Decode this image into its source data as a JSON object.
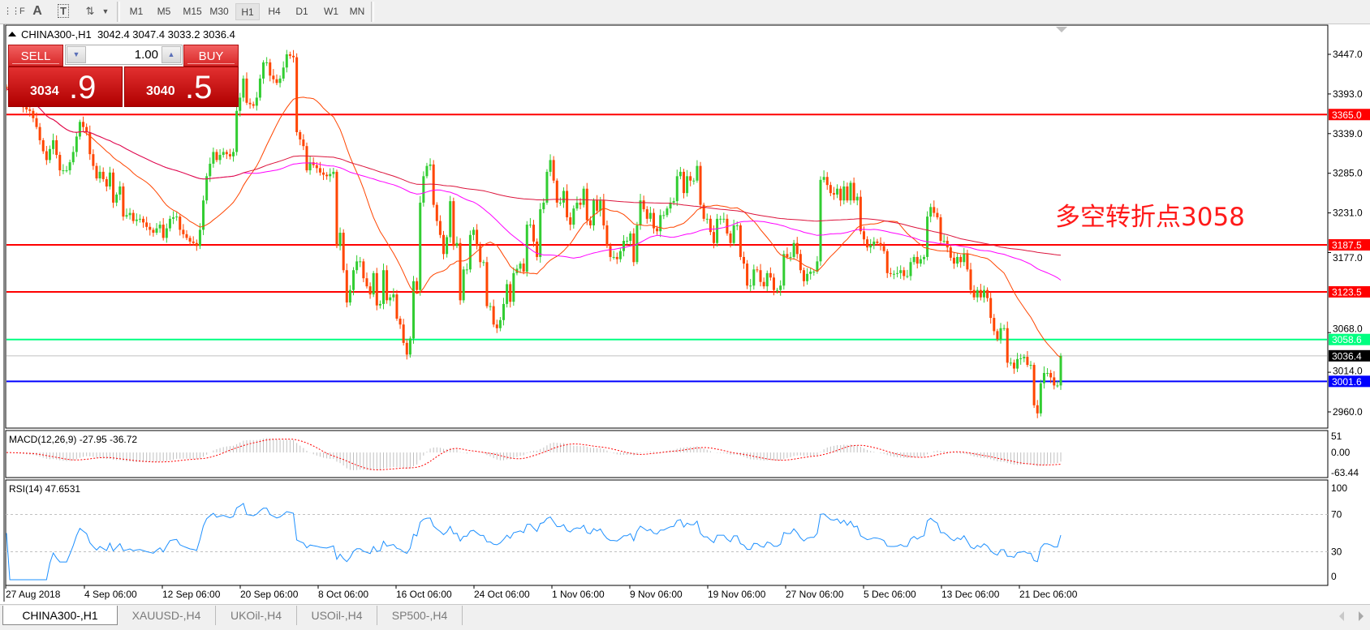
{
  "toolbar": {
    "icons": [
      "grid-f-icon",
      "text-icon",
      "text-label-icon",
      "arrows-icon"
    ],
    "timeframes": [
      "M1",
      "M5",
      "M15",
      "M30",
      "H1",
      "H4",
      "D1",
      "W1",
      "MN"
    ],
    "active_timeframe": "H1"
  },
  "chart_title": {
    "symbol": "CHINA300-,H1",
    "ohlc": "3042.4 3047.4 3033.2 3036.4"
  },
  "trade_panel": {
    "sell_label": "SELL",
    "buy_label": "BUY",
    "volume": "1.00",
    "sell_price_main": "3034",
    "sell_price_big": ".9",
    "buy_price_main": "3040",
    "buy_price_big": ".5"
  },
  "annotation": "多空转折点3058",
  "colors": {
    "bull": "#32cd32",
    "bear": "#ff4500",
    "ma_fast": "#ff4500",
    "ma_mid": "#ff00ff",
    "ma_slow": "#dc143c",
    "macd_hist": "#c0c0c0",
    "macd_signal": "#ff0000",
    "rsi": "#1e90ff"
  },
  "chart": {
    "price_ticks": [
      "3447.0",
      "3393.0",
      "3339.0",
      "3285.0",
      "3231.0",
      "3177.0",
      "3068.0",
      "3014.0",
      "2960.0"
    ],
    "levels": [
      {
        "price": 3365.0,
        "label": "3365.0",
        "color": "#ff0000",
        "text_color": "#ffffff"
      },
      {
        "price": 3187.5,
        "label": "3187.5",
        "color": "#ff0000",
        "text_color": "#ffffff"
      },
      {
        "price": 3123.5,
        "label": "3123.5",
        "color": "#ff0000",
        "text_color": "#ffffff"
      },
      {
        "price": 3058.6,
        "label": "3058.6",
        "color": "#00ff80",
        "text_color": "#ffffff"
      },
      {
        "price": 3036.4,
        "label": "3036.4",
        "color": "#c0c0c0",
        "text_color": "#ffffff",
        "tag_color": "#000000"
      },
      {
        "price": 3001.6,
        "label": "3001.6",
        "color": "#0000ff",
        "text_color": "#ffffff"
      }
    ],
    "time_labels": [
      "27 Aug 2018",
      "4 Sep 06:00",
      "12 Sep 06:00",
      "20 Sep 06:00",
      "8 Oct 06:00",
      "16 Oct 06:00",
      "24 Oct 06:00",
      "1 Nov 06:00",
      "9 Nov 06:00",
      "19 Nov 06:00",
      "27 Nov 06:00",
      "5 Dec 06:00",
      "13 Dec 06:00",
      "21 Dec 06:00"
    ],
    "closes": [
      3400,
      3395,
      3390,
      3385,
      3380,
      3375,
      3372,
      3370,
      3360,
      3348,
      3330,
      3315,
      3303,
      3318,
      3330,
      3310,
      3289,
      3289,
      3289,
      3300,
      3314,
      3335,
      3355,
      3348,
      3341,
      3311,
      3295,
      3278,
      3287,
      3277,
      3267,
      3286,
      3245,
      3256,
      3267,
      3226,
      3228,
      3231,
      3220,
      3222,
      3223,
      3218,
      3212,
      3208,
      3204,
      3210,
      3215,
      3197,
      3210,
      3223,
      3225,
      3226,
      3208,
      3202,
      3197,
      3192,
      3190,
      3186,
      3208,
      3248,
      3281,
      3298,
      3314,
      3303,
      3310,
      3314,
      3311,
      3308,
      3314,
      3370,
      3388,
      3414,
      3381,
      3379,
      3377,
      3388,
      3414,
      3436,
      3436,
      3418,
      3413,
      3408,
      3414,
      3429,
      3447,
      3445,
      3443,
      3341,
      3331,
      3322,
      3289,
      3300,
      3296,
      3292,
      3286,
      3283,
      3281,
      3284,
      3287,
      3186,
      3204,
      3153,
      3109,
      3126,
      3153,
      3165,
      3165,
      3142,
      3131,
      3120,
      3149,
      3105,
      3107,
      3153,
      3112,
      3116,
      3120,
      3087,
      3079,
      3054,
      3038,
      3060,
      3138,
      3126,
      3245,
      3281,
      3295,
      3297,
      3242,
      3220,
      3201,
      3175,
      3198,
      3247,
      3186,
      3190,
      3112,
      3154,
      3154,
      3201,
      3208,
      3186,
      3164,
      3164,
      3104,
      3104,
      3079,
      3074,
      3085,
      3107,
      3134,
      3110,
      3149,
      3155,
      3162,
      3151,
      3215,
      3215,
      3192,
      3171,
      3236,
      3245,
      3287,
      3303,
      3275,
      3245,
      3245,
      3261,
      3225,
      3215,
      3237,
      3245,
      3242,
      3264,
      3221,
      3214,
      3248,
      3234,
      3248,
      3214,
      3186,
      3171,
      3171,
      3168,
      3179,
      3193,
      3193,
      3203,
      3164,
      3214,
      3248,
      3236,
      3223,
      3231,
      3210,
      3206,
      3228,
      3228,
      3237,
      3245,
      3247,
      3281,
      3287,
      3258,
      3281,
      3275,
      3275,
      3295,
      3242,
      3223,
      3223,
      3205,
      3190,
      3223,
      3223,
      3223,
      3203,
      3190,
      3214,
      3214,
      3171,
      3162,
      3132,
      3132,
      3154,
      3153,
      3137,
      3131,
      3149,
      3143,
      3126,
      3126,
      3132,
      3175,
      3171,
      3171,
      3190,
      3175,
      3153,
      3138,
      3148,
      3151,
      3151,
      3165,
      3276,
      3280,
      3269,
      3258,
      3256,
      3264,
      3248,
      3267,
      3248,
      3272,
      3248,
      3253,
      3206,
      3195,
      3184,
      3187,
      3192,
      3190,
      3186,
      3179,
      3149,
      3148,
      3148,
      3149,
      3153,
      3145,
      3145,
      3164,
      3171,
      3162,
      3168,
      3171,
      3226,
      3239,
      3231,
      3225,
      3193,
      3193,
      3184,
      3170,
      3162,
      3171,
      3164,
      3176,
      3154,
      3126,
      3116,
      3126,
      3116,
      3126,
      3115,
      3088,
      3070,
      3059,
      3074,
      3074,
      3027,
      3027,
      3019,
      3032,
      3033,
      3035,
      3024,
      3024,
      2969,
      2958,
      2999,
      3013,
      3013,
      3007,
      2996,
      2996,
      3036.4
    ]
  },
  "macd": {
    "label": "MACD(12,26,9) -27.95 -36.72",
    "axis": [
      {
        "value": 51,
        "label": "51"
      },
      {
        "value": 0,
        "label": "0.00"
      },
      {
        "value": -63.44,
        "label": "-63.44"
      }
    ]
  },
  "rsi": {
    "label": "RSI(14) 47.6531",
    "axis": [
      {
        "value": 100,
        "label": "100"
      },
      {
        "value": 70,
        "label": "70"
      },
      {
        "value": 30,
        "label": "30"
      },
      {
        "value": 0,
        "label": "0"
      }
    ],
    "levels": [
      70,
      30
    ]
  },
  "tabs": [
    {
      "label": "CHINA300-,H1",
      "active": true
    },
    {
      "label": "XAUUSD-,H4",
      "active": false
    },
    {
      "label": "UKOil-,H4",
      "active": false
    },
    {
      "label": "USOil-,H4",
      "active": false
    },
    {
      "label": "SP500-,H4",
      "active": false
    }
  ]
}
